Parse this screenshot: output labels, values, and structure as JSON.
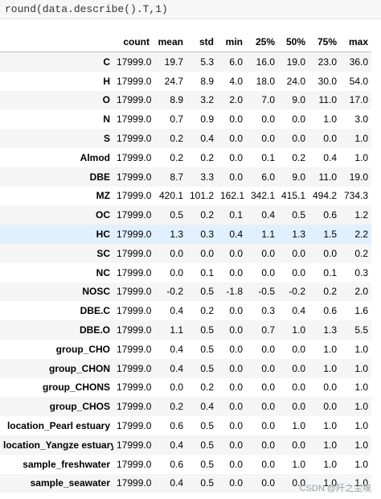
{
  "code": {
    "text": "round(data.describe().T,1)"
  },
  "table": {
    "columns": [
      "count",
      "mean",
      "std",
      "min",
      "25%",
      "50%",
      "75%",
      "max"
    ],
    "rows": [
      {
        "label": "C",
        "values": [
          "17999.0",
          "19.7",
          "5.3",
          "6.0",
          "16.0",
          "19.0",
          "23.0",
          "36.0"
        ]
      },
      {
        "label": "H",
        "values": [
          "17999.0",
          "24.7",
          "8.9",
          "4.0",
          "18.0",
          "24.0",
          "30.0",
          "54.0"
        ]
      },
      {
        "label": "O",
        "values": [
          "17999.0",
          "8.9",
          "3.2",
          "2.0",
          "7.0",
          "9.0",
          "11.0",
          "17.0"
        ]
      },
      {
        "label": "N",
        "values": [
          "17999.0",
          "0.7",
          "0.9",
          "0.0",
          "0.0",
          "0.0",
          "1.0",
          "3.0"
        ]
      },
      {
        "label": "S",
        "values": [
          "17999.0",
          "0.2",
          "0.4",
          "0.0",
          "0.0",
          "0.0",
          "0.0",
          "1.0"
        ]
      },
      {
        "label": "Almod",
        "values": [
          "17999.0",
          "0.2",
          "0.2",
          "0.0",
          "0.1",
          "0.2",
          "0.4",
          "1.0"
        ]
      },
      {
        "label": "DBE",
        "values": [
          "17999.0",
          "8.7",
          "3.3",
          "0.0",
          "6.0",
          "9.0",
          "11.0",
          "19.0"
        ]
      },
      {
        "label": "MZ",
        "values": [
          "17999.0",
          "420.1",
          "101.2",
          "162.1",
          "342.1",
          "415.1",
          "494.2",
          "734.3"
        ]
      },
      {
        "label": "OC",
        "values": [
          "17999.0",
          "0.5",
          "0.2",
          "0.1",
          "0.4",
          "0.5",
          "0.6",
          "1.2"
        ]
      },
      {
        "label": "HC",
        "values": [
          "17999.0",
          "1.3",
          "0.3",
          "0.4",
          "1.1",
          "1.3",
          "1.5",
          "2.2"
        ]
      },
      {
        "label": "SC",
        "values": [
          "17999.0",
          "0.0",
          "0.0",
          "0.0",
          "0.0",
          "0.0",
          "0.0",
          "0.2"
        ]
      },
      {
        "label": "NC",
        "values": [
          "17999.0",
          "0.0",
          "0.1",
          "0.0",
          "0.0",
          "0.0",
          "0.1",
          "0.3"
        ]
      },
      {
        "label": "NOSC",
        "values": [
          "17999.0",
          "-0.2",
          "0.5",
          "-1.8",
          "-0.5",
          "-0.2",
          "0.2",
          "2.0"
        ]
      },
      {
        "label": "DBE.C",
        "values": [
          "17999.0",
          "0.4",
          "0.2",
          "0.0",
          "0.3",
          "0.4",
          "0.6",
          "1.6"
        ]
      },
      {
        "label": "DBE.O",
        "values": [
          "17999.0",
          "1.1",
          "0.5",
          "0.0",
          "0.7",
          "1.0",
          "1.3",
          "5.5"
        ]
      },
      {
        "label": "group_CHO",
        "values": [
          "17999.0",
          "0.4",
          "0.5",
          "0.0",
          "0.0",
          "0.0",
          "1.0",
          "1.0"
        ]
      },
      {
        "label": "group_CHON",
        "values": [
          "17999.0",
          "0.4",
          "0.5",
          "0.0",
          "0.0",
          "0.0",
          "1.0",
          "1.0"
        ]
      },
      {
        "label": "group_CHONS",
        "values": [
          "17999.0",
          "0.0",
          "0.2",
          "0.0",
          "0.0",
          "0.0",
          "0.0",
          "1.0"
        ]
      },
      {
        "label": "group_CHOS",
        "values": [
          "17999.0",
          "0.2",
          "0.4",
          "0.0",
          "0.0",
          "0.0",
          "0.0",
          "1.0"
        ]
      },
      {
        "label": "location_Pearl estuary",
        "values": [
          "17999.0",
          "0.6",
          "0.5",
          "0.0",
          "0.0",
          "1.0",
          "1.0",
          "1.0"
        ]
      },
      {
        "label": "location_Yangze estuary",
        "values": [
          "17999.0",
          "0.4",
          "0.5",
          "0.0",
          "0.0",
          "0.0",
          "1.0",
          "1.0"
        ]
      },
      {
        "label": "sample_freshwater",
        "values": [
          "17999.0",
          "0.6",
          "0.5",
          "0.0",
          "0.0",
          "1.0",
          "1.0",
          "1.0"
        ]
      },
      {
        "label": "sample_seawater",
        "values": [
          "17999.0",
          "0.4",
          "0.5",
          "0.0",
          "0.0",
          "0.0",
          "1.0",
          "1.0"
        ]
      }
    ],
    "highlighted_row": "HC"
  },
  "watermark": {
    "text": "CSDN @阡之尘埃"
  },
  "colors": {
    "code_bg": "#f7f7f7",
    "row_alt": "#f5f5f5",
    "row_highlight": "#e1f0ff"
  }
}
